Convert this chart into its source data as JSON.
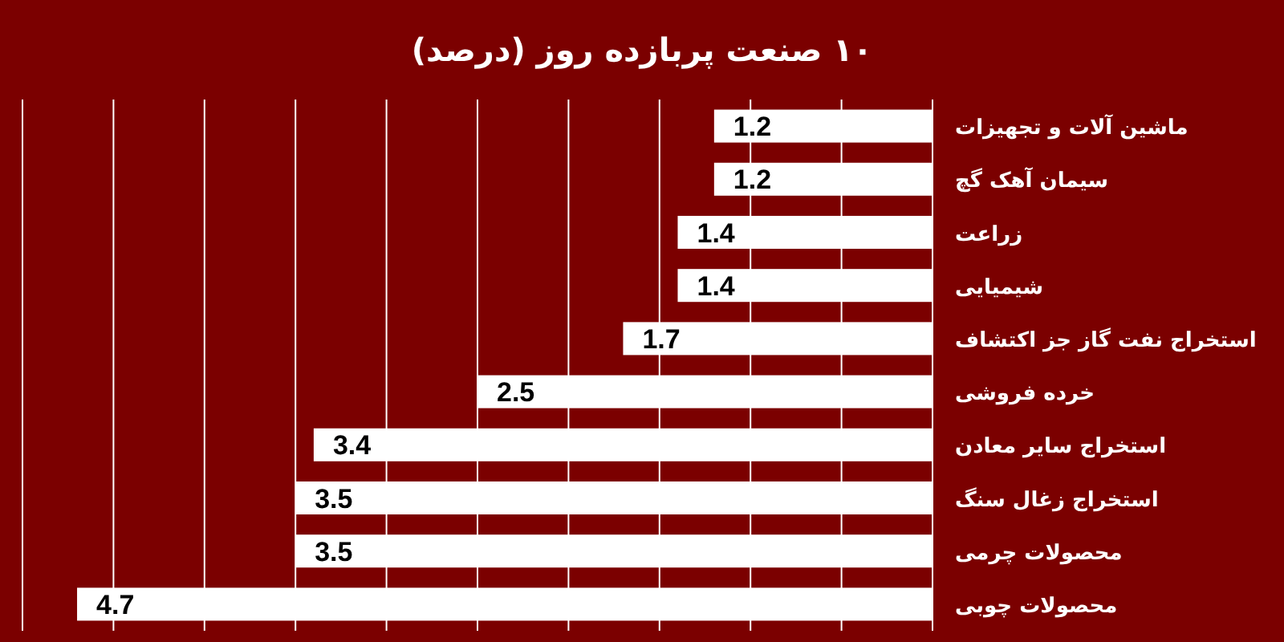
{
  "chart_data": {
    "type": "bar",
    "orientation": "horizontal",
    "title": "۱۰ صنعت پربازده روز (درصد)",
    "categories": [
      "ماشین آلات و تجهیزات",
      "سیمان آهک گچ",
      "زراعت",
      "شیمیایی",
      "استخراج نفت گاز جز اکتشاف",
      "خرده فروشی",
      "استخراج سایر معادن",
      "استخراج زغال سنگ",
      "محصولات چرمی",
      "محصولات چوبی"
    ],
    "values": [
      1.2,
      1.2,
      1.4,
      1.4,
      1.7,
      2.5,
      3.4,
      3.5,
      3.5,
      4.7
    ],
    "color": "#ffffff",
    "xlim": [
      5,
      0
    ],
    "xticks": [
      {
        "value": 0,
        "label": null
      },
      {
        "value": 0.5,
        "label": null
      },
      {
        "value": 1,
        "label": null
      },
      {
        "value": 1.5,
        "label": null
      },
      {
        "value": 2,
        "label": null
      },
      {
        "value": 2.5,
        "label": null
      },
      {
        "value": 3,
        "label": null
      },
      {
        "value": 3.5,
        "label": null
      },
      {
        "value": 4,
        "label": null
      },
      {
        "value": 4.5,
        "label": null
      },
      {
        "value": 5,
        "label": null
      }
    ],
    "grid": "x",
    "tick_labels": "y",
    "data_labels": true
  }
}
